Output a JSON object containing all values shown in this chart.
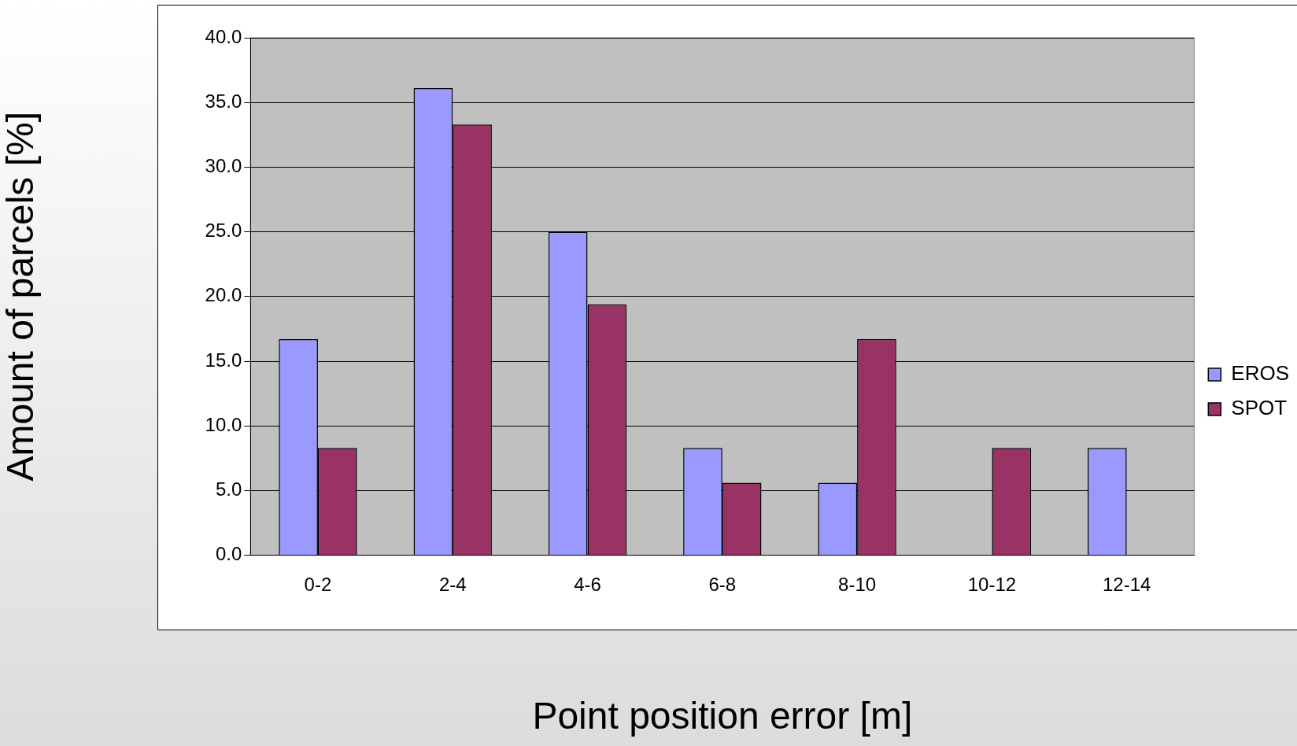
{
  "chart_data": {
    "type": "bar",
    "xlabel": "Point position error [m]",
    "ylabel": "Amount of parcels [%]",
    "categories": [
      "0-2",
      "2-4",
      "4-6",
      "6-8",
      "8-10",
      "10-12",
      "12-14"
    ],
    "series": [
      {
        "name": "EROS",
        "color": "#9999ff",
        "values": [
          16.7,
          36.1,
          25.0,
          8.3,
          5.6,
          0,
          8.3
        ]
      },
      {
        "name": "SPOT",
        "color": "#993366",
        "values": [
          8.3,
          33.3,
          19.4,
          5.6,
          16.7,
          8.3,
          0
        ]
      }
    ],
    "ylim": [
      0,
      40
    ],
    "yticks": [
      {
        "value": 0,
        "label": "0.0"
      },
      {
        "value": 5,
        "label": "5.0"
      },
      {
        "value": 10,
        "label": "10.0"
      },
      {
        "value": 15,
        "label": "15.0"
      },
      {
        "value": 20,
        "label": "20.0"
      },
      {
        "value": 25,
        "label": "25.0"
      },
      {
        "value": 30,
        "label": "30.0"
      },
      {
        "value": 35,
        "label": "35.0"
      },
      {
        "value": 40,
        "label": "40.0"
      }
    ],
    "grid": "y",
    "legend": "right"
  }
}
